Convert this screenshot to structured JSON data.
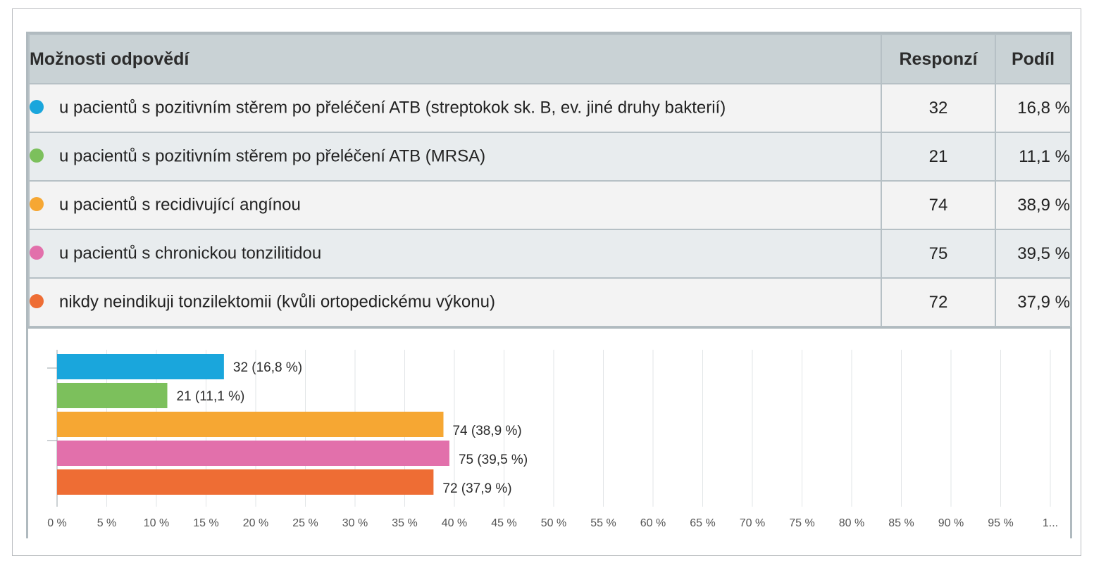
{
  "table": {
    "header": {
      "option": "Možnosti odpovědí",
      "responses": "Responzí",
      "share": "Podíl"
    },
    "rows": [
      {
        "label": "u pacientů s pozitivním stěrem po přeléčení ATB (streptokok sk. B, ev. jiné druhy bakterií)",
        "responses": "32",
        "share": "16,8 %",
        "color": "#1aa6dc"
      },
      {
        "label": "u pacientů s pozitivním stěrem po přeléčení ATB (MRSA)",
        "responses": "21",
        "share": "11,1 %",
        "color": "#7cc05c"
      },
      {
        "label": "u pacientů s recidivující angínou",
        "responses": "74",
        "share": "38,9 %",
        "color": "#f6a733"
      },
      {
        "label": "u pacientů s chronickou tonzilitidou",
        "responses": "75",
        "share": "39,5 %",
        "color": "#e270ab"
      },
      {
        "label": "nikdy neindikuji tonzilektomii (kvůli ortopedickému výkonu)",
        "responses": "72",
        "share": "37,9 %",
        "color": "#ee6d34"
      }
    ]
  },
  "chart_data": {
    "type": "bar",
    "orientation": "horizontal",
    "categories": [
      "u pacientů s pozitivním stěrem po přeléčení ATB (streptokok sk. B, ev. jiné druhy bakterií)",
      "u pacientů s pozitivním stěrem po přeléčení ATB (MRSA)",
      "u pacientů s recidivující angínou",
      "u pacientů s chronickou tonzilitidou",
      "nikdy neindikuji tonzilektomii (kvůli ortopedickému výkonu)"
    ],
    "values": [
      16.8,
      11.1,
      38.9,
      39.5,
      37.9
    ],
    "data_labels": [
      "32 (16,8 %)",
      "21 (11,1 %)",
      "74 (38,9 %)",
      "75 (39,5 %)",
      "72 (37,9 %)"
    ],
    "colors": [
      "#1aa6dc",
      "#7cc05c",
      "#f6a733",
      "#e270ab",
      "#ee6d34"
    ],
    "xlim": [
      0,
      100
    ],
    "x_tick_labels": [
      "0 %",
      "5 %",
      "10 %",
      "15 %",
      "20 %",
      "25 %",
      "30 %",
      "35 %",
      "40 %",
      "45 %",
      "50 %",
      "55 %",
      "60 %",
      "65 %",
      "70 %",
      "75 %",
      "80 %",
      "85 %",
      "90 %",
      "95 %",
      "1..."
    ],
    "grid": true,
    "title": "",
    "xlabel": "",
    "ylabel": ""
  }
}
